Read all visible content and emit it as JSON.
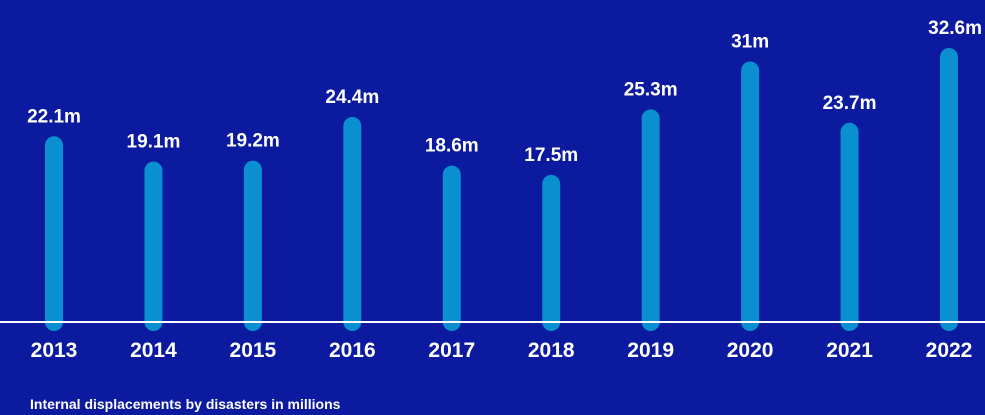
{
  "caption": "Internal displacements by disasters in millions",
  "colors": {
    "background": "#0b1a9e",
    "bar": "#0a8fd0",
    "text": "#ffffff",
    "baseline": "#ffffff"
  },
  "chart_data": {
    "type": "bar",
    "categories": [
      "2013",
      "2014",
      "2015",
      "2016",
      "2017",
      "2018",
      "2019",
      "2020",
      "2021",
      "2022"
    ],
    "values": [
      22.1,
      19.1,
      19.2,
      24.4,
      18.6,
      17.5,
      25.3,
      31,
      23.7,
      32.6
    ],
    "value_labels": [
      "22.1m",
      "19.1m",
      "19.2m",
      "24.4m",
      "18.6m",
      "17.5m",
      "25.3m",
      "31m",
      "23.7m",
      "32.6m"
    ],
    "title": "",
    "xlabel": "",
    "ylabel": "",
    "ylim": [
      0,
      32.6
    ],
    "grid": false,
    "legend": "none"
  }
}
